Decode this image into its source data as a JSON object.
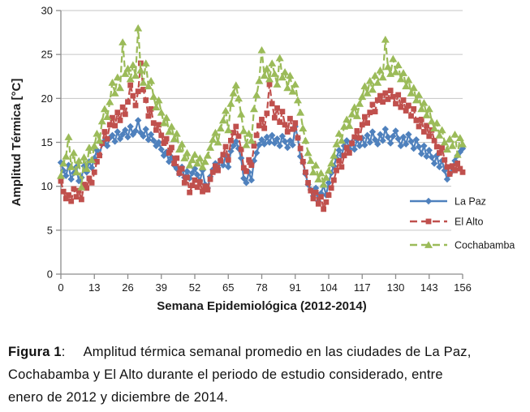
{
  "chart_data": {
    "type": "line",
    "title": "",
    "xlabel": "Semana Epidemiológica (2012-2014)",
    "ylabel": "Amplitud Térmica [°C]",
    "xlim": [
      0,
      156
    ],
    "ylim": [
      0,
      30
    ],
    "x_ticks": [
      0,
      13,
      26,
      39,
      52,
      65,
      78,
      91,
      104,
      117,
      130,
      143,
      156
    ],
    "y_ticks": [
      0,
      5,
      10,
      15,
      20,
      25,
      30
    ],
    "grid": true,
    "legend_position": "inside-right",
    "x_weeks": "0..156 step 1",
    "colors": {
      "gridline": "#C6C6C6",
      "axis": "#8C8C8C",
      "text": "#1A1A1A"
    },
    "series": [
      {
        "name": "La Paz",
        "color": "#4F81BD",
        "marker": "diamond",
        "line": "solid",
        "values": [
          12.7,
          11.8,
          11.2,
          12.4,
          10.8,
          11.5,
          12.2,
          10.6,
          11.0,
          12.3,
          11.6,
          12.8,
          12.1,
          13.2,
          14.1,
          13.6,
          14.8,
          15.2,
          14.6,
          15.5,
          15.8,
          15.1,
          16.2,
          15.4,
          15.9,
          16.4,
          15.6,
          16.8,
          15.9,
          16.3,
          17.5,
          16.1,
          15.7,
          16.5,
          15.3,
          15.9,
          15.2,
          14.6,
          15.0,
          14.2,
          13.5,
          13.9,
          12.8,
          13.3,
          12.4,
          12.0,
          11.4,
          12.2,
          11.0,
          11.7,
          10.9,
          11.5,
          12.0,
          11.3,
          10.6,
          11.8,
          10.2,
          9.8,
          11.1,
          11.9,
          12.6,
          12.1,
          13.0,
          12.4,
          13.4,
          12.2,
          14.0,
          14.6,
          15.1,
          14.3,
          13.2,
          10.9,
          10.4,
          11.6,
          10.7,
          12.9,
          13.8,
          14.7,
          15.3,
          14.8,
          15.6,
          15.0,
          15.8,
          14.9,
          15.4,
          14.6,
          15.7,
          15.1,
          14.4,
          15.2,
          14.7,
          16.8,
          15.5,
          13.4,
          12.7,
          11.4,
          10.2,
          9.6,
          8.9,
          9.8,
          8.3,
          9.2,
          10.1,
          9.0,
          10.4,
          11.5,
          12.3,
          13.2,
          14.1,
          13.5,
          14.6,
          15.2,
          14.3,
          15.0,
          14.2,
          15.3,
          14.6,
          15.5,
          14.7,
          15.8,
          15.0,
          16.2,
          15.3,
          14.8,
          15.9,
          15.2,
          16.5,
          15.6,
          14.9,
          15.7,
          16.3,
          15.4,
          14.6,
          15.6,
          14.8,
          15.9,
          15.1,
          14.3,
          15.3,
          14.5,
          13.7,
          14.6,
          13.4,
          14.1,
          13.3,
          12.6,
          13.5,
          12.2,
          12.9,
          11.8,
          10.8,
          11.4,
          12.1,
          12.9,
          13.5,
          13.9,
          14.3
        ]
      },
      {
        "name": "El Alto",
        "color": "#C0504D",
        "marker": "square",
        "line": "dashed",
        "values": [
          10.6,
          9.4,
          8.6,
          9.0,
          8.3,
          9.7,
          8.8,
          9.5,
          8.5,
          10.2,
          9.8,
          10.9,
          10.4,
          11.6,
          12.8,
          13.5,
          14.9,
          16.2,
          15.4,
          17.0,
          17.8,
          16.9,
          18.4,
          17.5,
          19.0,
          18.2,
          19.6,
          21.5,
          20.3,
          19.2,
          20.8,
          24.0,
          21.0,
          19.8,
          18.0,
          18.8,
          17.2,
          16.4,
          17.0,
          15.8,
          14.9,
          15.4,
          13.8,
          14.4,
          12.6,
          13.2,
          11.5,
          12.0,
          10.4,
          11.0,
          9.3,
          10.1,
          10.7,
          9.9,
          10.5,
          9.4,
          10.0,
          9.6,
          10.8,
          11.6,
          12.3,
          11.8,
          12.9,
          13.6,
          14.5,
          13.0,
          15.2,
          16.1,
          16.8,
          15.7,
          14.2,
          12.1,
          11.7,
          13.0,
          12.4,
          14.6,
          15.8,
          16.9,
          17.6,
          16.6,
          18.3,
          21.6,
          19.4,
          17.8,
          18.9,
          17.3,
          18.5,
          17.0,
          16.2,
          17.7,
          16.5,
          17.2,
          15.5,
          14.3,
          12.8,
          11.6,
          10.4,
          9.5,
          8.6,
          9.3,
          8.0,
          8.8,
          7.4,
          8.2,
          9.0,
          9.8,
          10.7,
          11.8,
          12.9,
          12.2,
          13.5,
          14.4,
          13.8,
          14.9,
          15.6,
          16.3,
          15.5,
          17.0,
          17.9,
          17.2,
          18.4,
          19.3,
          18.5,
          19.8,
          20.3,
          19.6,
          20.6,
          19.9,
          20.9,
          20.2,
          19.4,
          20.4,
          19.0,
          19.8,
          18.6,
          19.2,
          18.0,
          18.8,
          17.5,
          16.8,
          17.6,
          16.2,
          16.9,
          15.7,
          16.4,
          15.2,
          14.5,
          13.8,
          14.4,
          13.0,
          12.2,
          11.4,
          12.3,
          11.8,
          12.6,
          12.0,
          11.6
        ]
      },
      {
        "name": "Cochabamba",
        "color": "#9BBB59",
        "marker": "triangle",
        "line": "dashed",
        "values": [
          11.2,
          12.6,
          13.4,
          15.6,
          12.2,
          13.8,
          11.6,
          12.9,
          9.9,
          13.3,
          12.0,
          14.4,
          13.0,
          14.6,
          16.0,
          15.2,
          17.4,
          18.8,
          17.9,
          19.6,
          21.8,
          20.6,
          22.4,
          21.2,
          26.4,
          22.8,
          23.4,
          22.2,
          23.8,
          22.6,
          28.0,
          23.2,
          21.8,
          24.0,
          21.4,
          22.0,
          20.2,
          19.0,
          19.8,
          18.4,
          17.2,
          17.8,
          16.2,
          16.8,
          15.4,
          16.0,
          14.2,
          14.8,
          13.2,
          13.8,
          12.4,
          13.0,
          13.6,
          12.6,
          13.2,
          12.2,
          12.8,
          13.5,
          14.4,
          15.3,
          16.1,
          15.0,
          16.6,
          17.5,
          18.6,
          16.4,
          19.4,
          20.6,
          21.5,
          20.0,
          18.2,
          16.3,
          14.7,
          16.0,
          15.2,
          18.8,
          20.4,
          22.0,
          25.5,
          22.6,
          23.4,
          22.2,
          24.0,
          22.8,
          21.6,
          24.6,
          22.4,
          23.0,
          21.2,
          22.6,
          20.8,
          21.6,
          19.8,
          18.4,
          16.6,
          15.2,
          13.8,
          12.9,
          11.6,
          12.4,
          10.8,
          11.5,
          10.2,
          11.0,
          11.8,
          12.6,
          13.5,
          14.8,
          16.0,
          15.2,
          16.8,
          17.6,
          16.9,
          18.2,
          19.0,
          18.0,
          19.4,
          20.2,
          21.4,
          20.6,
          22.0,
          21.0,
          22.6,
          21.8,
          23.2,
          22.4,
          26.7,
          23.6,
          22.8,
          24.5,
          23.0,
          23.8,
          22.2,
          22.9,
          21.4,
          22.1,
          20.6,
          21.2,
          19.8,
          20.4,
          18.8,
          19.5,
          18.1,
          18.8,
          17.4,
          16.6,
          17.2,
          15.8,
          16.4,
          15.0,
          14.2,
          15.4,
          14.6,
          15.9,
          13.6,
          15.5,
          14.8
        ]
      }
    ]
  },
  "caption": {
    "label": "Figura 1",
    "colon": ":",
    "line1": "Amplitud térmica semanal promedio en las ciudades de La Paz,",
    "line2": "Cochabamba y El Alto durante el periodo de estudio considerado, entre",
    "line3": "enero de 2012 y diciembre de 2014."
  }
}
